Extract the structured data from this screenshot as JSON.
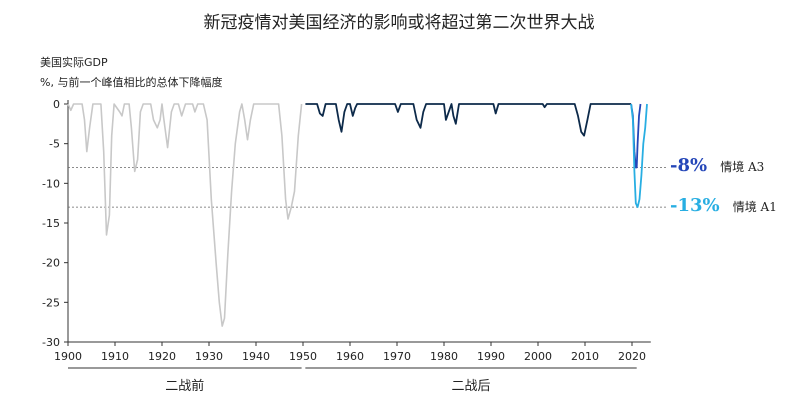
{
  "title": "新冠疫情对美国经济的影响或将超过第二次世界大战",
  "ylabel_line1": "美国实际GDP",
  "ylabel_line2": "%, 与前一个峰值相比的总体下降幅度",
  "colors": {
    "prewar": "#c8c8c8",
    "postwar": "#0d2a4a",
    "scenario_a3": "#2446b8",
    "scenario_a1": "#28aee2",
    "refline": "#666666"
  },
  "scenarios": [
    {
      "value_label": "-8%",
      "name": "情境 A3",
      "value": -8,
      "color": "#2446b8"
    },
    {
      "value_label": "-13%",
      "name": "情境 A1",
      "value": -13,
      "color": "#28aee2"
    }
  ],
  "eras": [
    {
      "label": "二战前",
      "from": 1900,
      "to": 1949.7
    },
    {
      "label": "二战后",
      "from": 1950.5,
      "to": 2021
    }
  ],
  "chart_data": {
    "type": "line",
    "title": "新冠疫情对美国经济的影响或将超过第二次世界大战",
    "ylabel": "美国实际GDP %, 与前一个峰值相比的总体下降幅度",
    "xlim": [
      1900,
      2024
    ],
    "ylim": [
      -30,
      0
    ],
    "x_ticks": [
      1900,
      1910,
      1920,
      1930,
      1940,
      1950,
      1960,
      1970,
      1980,
      1990,
      2000,
      2010,
      2020
    ],
    "y_ticks": [
      0,
      -5,
      -10,
      -15,
      -20,
      -25,
      -30
    ],
    "reference_lines": [
      -8,
      -13
    ],
    "series": [
      {
        "key": "prewar",
        "color": "#c8c8c8",
        "points": [
          [
            1900,
            0
          ],
          [
            1900.6,
            -0.8
          ],
          [
            1901.2,
            0
          ],
          [
            1903,
            0
          ],
          [
            1903.5,
            -2
          ],
          [
            1904,
            -6
          ],
          [
            1904.6,
            -3
          ],
          [
            1905.3,
            0
          ],
          [
            1907,
            0
          ],
          [
            1907.6,
            -6
          ],
          [
            1908.2,
            -16.5
          ],
          [
            1908.8,
            -14
          ],
          [
            1909.3,
            -4
          ],
          [
            1909.8,
            0
          ],
          [
            1911,
            -1
          ],
          [
            1911.5,
            -1.5
          ],
          [
            1912,
            0
          ],
          [
            1913,
            0
          ],
          [
            1913.5,
            -3
          ],
          [
            1914.2,
            -8.5
          ],
          [
            1914.8,
            -7
          ],
          [
            1915.4,
            -1
          ],
          [
            1916,
            0
          ],
          [
            1917.6,
            0
          ],
          [
            1918.2,
            -2
          ],
          [
            1919,
            -3
          ],
          [
            1919.6,
            -2
          ],
          [
            1920,
            0
          ],
          [
            1920.3,
            -1.5
          ],
          [
            1921.2,
            -5.5
          ],
          [
            1922,
            -1
          ],
          [
            1922.6,
            0
          ],
          [
            1923.5,
            0
          ],
          [
            1924.2,
            -1.5
          ],
          [
            1925,
            0
          ],
          [
            1926.5,
            0
          ],
          [
            1927,
            -1
          ],
          [
            1927.6,
            0
          ],
          [
            1928.8,
            0
          ],
          [
            1929.6,
            -2
          ],
          [
            1930.5,
            -12
          ],
          [
            1931.5,
            -20
          ],
          [
            1932.2,
            -25
          ],
          [
            1932.8,
            -28
          ],
          [
            1933.3,
            -27
          ],
          [
            1934,
            -19
          ],
          [
            1934.8,
            -11
          ],
          [
            1935.6,
            -5
          ],
          [
            1936.5,
            -1
          ],
          [
            1937,
            0
          ],
          [
            1937.6,
            -2
          ],
          [
            1938.2,
            -4.5
          ],
          [
            1938.8,
            -2
          ],
          [
            1939.5,
            0
          ],
          [
            1944.8,
            0
          ],
          [
            1945.5,
            -4
          ],
          [
            1946.3,
            -12
          ],
          [
            1946.8,
            -14.5
          ],
          [
            1947.5,
            -13
          ],
          [
            1948.2,
            -11
          ],
          [
            1949,
            -4
          ],
          [
            1949.7,
            0
          ]
        ]
      },
      {
        "key": "postwar",
        "color": "#0d2a4a",
        "points": [
          [
            1950.5,
            0
          ],
          [
            1953,
            0
          ],
          [
            1953.6,
            -1.2
          ],
          [
            1954.2,
            -1.5
          ],
          [
            1954.8,
            0
          ],
          [
            1957,
            0
          ],
          [
            1957.6,
            -2
          ],
          [
            1958.2,
            -3.5
          ],
          [
            1958.8,
            -1
          ],
          [
            1959.4,
            0
          ],
          [
            1960,
            0
          ],
          [
            1960.6,
            -1.5
          ],
          [
            1961.1,
            -0.5
          ],
          [
            1961.5,
            0
          ],
          [
            1969.6,
            0
          ],
          [
            1970.2,
            -1
          ],
          [
            1970.8,
            0
          ],
          [
            1973.5,
            0
          ],
          [
            1974.2,
            -2
          ],
          [
            1975,
            -3
          ],
          [
            1975.6,
            -1
          ],
          [
            1976.2,
            0
          ],
          [
            1980,
            0
          ],
          [
            1980.4,
            -2
          ],
          [
            1981,
            -1
          ],
          [
            1981.6,
            0
          ],
          [
            1982,
            -1.5
          ],
          [
            1982.5,
            -2.5
          ],
          [
            1983.2,
            0
          ],
          [
            1990.5,
            0
          ],
          [
            1991,
            -1.2
          ],
          [
            1991.6,
            0
          ],
          [
            2001,
            0
          ],
          [
            2001.4,
            -0.4
          ],
          [
            2001.9,
            0
          ],
          [
            2007.8,
            0
          ],
          [
            2008.5,
            -1.5
          ],
          [
            2009.2,
            -3.5
          ],
          [
            2009.8,
            -4
          ],
          [
            2010.5,
            -2
          ],
          [
            2011.2,
            0
          ],
          [
            2019.8,
            0
          ]
        ]
      },
      {
        "key": "scenario_a3",
        "name": "情境 A3",
        "color": "#2446b8",
        "points": [
          [
            2019.8,
            0
          ],
          [
            2020.2,
            -1.5
          ],
          [
            2020.5,
            -6
          ],
          [
            2020.8,
            -8
          ],
          [
            2021,
            -8
          ],
          [
            2021.2,
            -5
          ],
          [
            2021.5,
            -1.5
          ],
          [
            2021.8,
            0
          ]
        ]
      },
      {
        "key": "scenario_a1",
        "name": "情境 A1",
        "color": "#28aee2",
        "points": [
          [
            2019.8,
            0
          ],
          [
            2020.2,
            -2
          ],
          [
            2020.5,
            -8.5
          ],
          [
            2020.8,
            -12.5
          ],
          [
            2021.2,
            -13
          ],
          [
            2021.6,
            -12
          ],
          [
            2022,
            -9
          ],
          [
            2022.4,
            -5
          ],
          [
            2022.8,
            -3
          ],
          [
            2023.2,
            0
          ]
        ]
      }
    ]
  }
}
